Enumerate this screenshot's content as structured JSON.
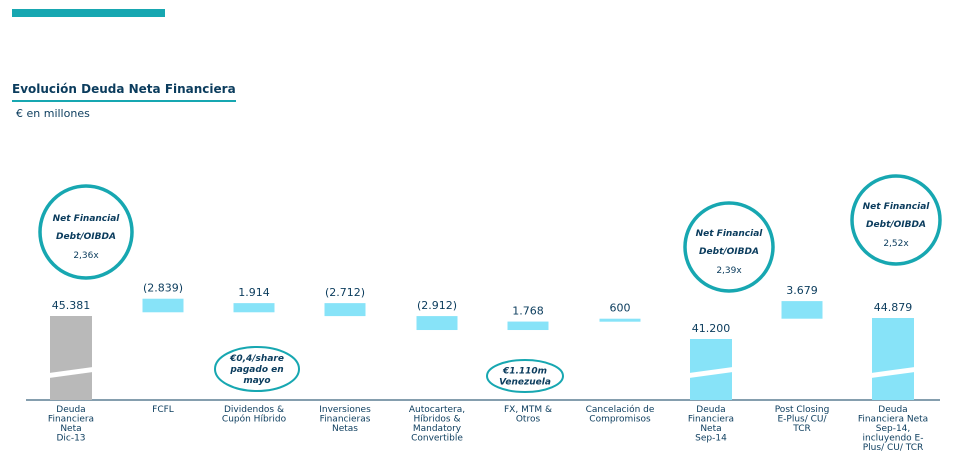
{
  "header": {
    "title": "Evolución Deuda Neta Financiera",
    "subtitle": "€ en millones"
  },
  "colors": {
    "accent": "#17a7b1",
    "bar_delta": "#87e3f8",
    "bar_total_first": "#b9b9b9",
    "text": "#0b3c5d"
  },
  "chart_data": {
    "type": "bar",
    "subtype": "waterfall",
    "title": "Evolución Deuda Neta Financiera",
    "ylabel": "€ en millones",
    "categories": [
      "Deuda Financiera Neta Dic-13",
      "FCFL",
      "Dividendos & Cupón Híbrido",
      "Inversiones Financieras Netas",
      "Autocartera, Híbridos & Mandatory Convertible",
      "FX, MTM & Otros",
      "Cancelación de Compromisos",
      "Deuda Financiera Neta Sep-14",
      "Post Closing E-Plus/ CU/ TCR",
      "Deuda Financiera Neta Sep-14, incluyendo E-Plus/ CU/ TCR"
    ],
    "category_lines": [
      [
        "Deuda",
        "Financiera",
        "Neta",
        "Dic-13"
      ],
      [
        "FCFL"
      ],
      [
        "Dividendos &",
        "Cupón Híbrido"
      ],
      [
        "Inversiones",
        "Financieras",
        "Netas"
      ],
      [
        "Autocartera,",
        "Híbridos &",
        "Mandatory",
        "Convertible"
      ],
      [
        "FX, MTM &",
        "Otros"
      ],
      [
        "Cancelación de",
        "Compromisos"
      ],
      [
        "Deuda",
        "Financiera",
        "Neta",
        "Sep-14"
      ],
      [
        "Post Closing",
        "E-Plus/ CU/",
        "TCR"
      ],
      [
        "Deuda",
        "Financiera Neta",
        "Sep-14,",
        "incluyendo E-",
        "Plus/ CU/ TCR"
      ]
    ],
    "values": [
      45381,
      -2839,
      1914,
      -2712,
      -2912,
      1768,
      600,
      41200,
      3679,
      44879
    ],
    "value_labels": [
      "45.381",
      "(2.839)",
      "1.914",
      "(2.712)",
      "(2.912)",
      "1.768",
      "600",
      "41.200",
      "3.679",
      "44.879"
    ],
    "bar_kind": [
      "total",
      "delta",
      "delta",
      "delta",
      "delta",
      "delta",
      "delta",
      "total",
      "delta",
      "total"
    ],
    "axis_break": true,
    "ratio_callouts": [
      {
        "category_index": 0,
        "label_lines": [
          "Net Financial",
          "Debt/OIBDA"
        ],
        "value": "2,36x"
      },
      {
        "category_index": 7,
        "label_lines": [
          "Net Financial",
          "Debt/OIBDA"
        ],
        "value": "2,39x"
      },
      {
        "category_index": 9,
        "label_lines": [
          "Net Financial",
          "Debt/OIBDA"
        ],
        "value": "2,52x"
      }
    ],
    "annotations": [
      {
        "category_index": 2,
        "lines": [
          "€0,4/share",
          "pagado en",
          "mayo"
        ]
      },
      {
        "category_index": 5,
        "lines": [
          "€1.110m",
          "Venezuela"
        ]
      }
    ]
  }
}
